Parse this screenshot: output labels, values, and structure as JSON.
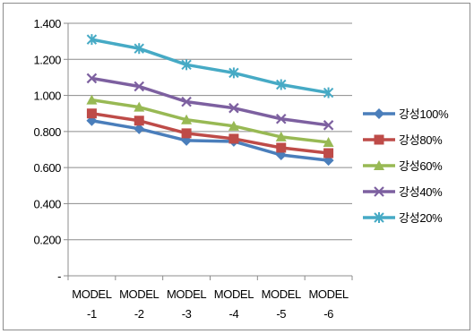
{
  "chart_data": {
    "type": "line",
    "title": "",
    "xlabel": "",
    "ylabel": "",
    "categories": [
      [
        "MODEL",
        "-1"
      ],
      [
        "MODEL",
        "-2"
      ],
      [
        "MODEL",
        "-3"
      ],
      [
        "MODEL",
        "-4"
      ],
      [
        "MODEL",
        "-5"
      ],
      [
        "MODEL",
        "-6"
      ]
    ],
    "ylim": [
      0,
      1.4
    ],
    "yticks": [
      0,
      0.2,
      0.4,
      0.6,
      0.8,
      1.0,
      1.2,
      1.4
    ],
    "ytick_labels": [
      "-",
      "0.200",
      "0.400",
      "0.600",
      "0.800",
      "1.000",
      "1.200",
      "1.400"
    ],
    "grid": "horizontal",
    "legend_position": "right",
    "series": [
      {
        "name": "강성100%",
        "color": "#4a7ebb",
        "marker": "diamond",
        "values": [
          0.86,
          0.815,
          0.75,
          0.745,
          0.67,
          0.64
        ]
      },
      {
        "name": "강성80%",
        "color": "#be4b48",
        "marker": "square",
        "values": [
          0.9,
          0.86,
          0.79,
          0.76,
          0.71,
          0.68
        ]
      },
      {
        "name": "강성60%",
        "color": "#98b954",
        "marker": "triangle",
        "values": [
          0.975,
          0.935,
          0.865,
          0.83,
          0.77,
          0.74
        ]
      },
      {
        "name": "강성40%",
        "color": "#7d60a0",
        "marker": "x",
        "values": [
          1.095,
          1.05,
          0.965,
          0.93,
          0.87,
          0.835
        ]
      },
      {
        "name": "강성20%",
        "color": "#46aac5",
        "marker": "star",
        "values": [
          1.31,
          1.26,
          1.17,
          1.125,
          1.06,
          1.015
        ]
      }
    ]
  }
}
